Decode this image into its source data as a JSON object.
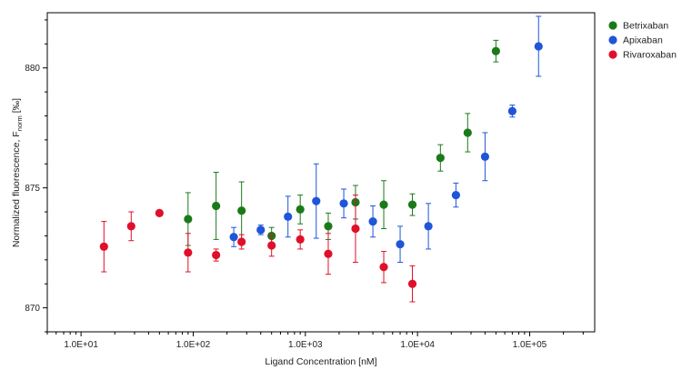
{
  "chart_data": {
    "type": "scatter",
    "title": "",
    "xlabel": "Ligand Concentration [nM]",
    "ylabel": {
      "prefix": "Normalized fluorescence, F",
      "subscript": "norm",
      "suffix": " [‰]"
    },
    "x_scale": "log",
    "xlim": [
      5,
      380000
    ],
    "ylim": [
      869,
      882.3
    ],
    "x_ticks": [
      10,
      100,
      1000,
      10000,
      100000
    ],
    "x_tick_labels": [
      "1.0E+01",
      "1.0E+02",
      "1.0E+03",
      "1.0E+04",
      "1.0E+05"
    ],
    "y_ticks": [
      870,
      875,
      880
    ],
    "y_tick_labels": [
      "870",
      "875",
      "880"
    ],
    "grid": false,
    "legend": "top-right outside plot",
    "series": [
      {
        "name": "Betrixaban",
        "color": "#1a7a1a",
        "points": [
          {
            "x": 90,
            "y": 873.7,
            "err": 1.1
          },
          {
            "x": 160,
            "y": 874.25,
            "err": 1.4
          },
          {
            "x": 270,
            "y": 874.05,
            "err": 1.2
          },
          {
            "x": 500,
            "y": 873.0,
            "err": 0.35
          },
          {
            "x": 900,
            "y": 874.1,
            "err": 0.6
          },
          {
            "x": 1600,
            "y": 873.4,
            "err": 0.55
          },
          {
            "x": 2800,
            "y": 874.4,
            "err": 0.7
          },
          {
            "x": 5000,
            "y": 874.3,
            "err": 1.0
          },
          {
            "x": 9000,
            "y": 874.3,
            "err": 0.45
          },
          {
            "x": 16000,
            "y": 876.25,
            "err": 0.55
          },
          {
            "x": 28000,
            "y": 877.3,
            "err": 0.8
          },
          {
            "x": 50000,
            "y": 880.7,
            "err": 0.45
          }
        ]
      },
      {
        "name": "Apixaban",
        "color": "#1f55d9",
        "points": [
          {
            "x": 230,
            "y": 872.95,
            "err": 0.4
          },
          {
            "x": 400,
            "y": 873.25,
            "err": 0.2
          },
          {
            "x": 700,
            "y": 873.8,
            "err": 0.85
          },
          {
            "x": 1250,
            "y": 874.45,
            "err": 1.55
          },
          {
            "x": 2200,
            "y": 874.35,
            "err": 0.6
          },
          {
            "x": 4000,
            "y": 873.6,
            "err": 0.65
          },
          {
            "x": 7000,
            "y": 872.65,
            "err": 0.75
          },
          {
            "x": 12500,
            "y": 873.4,
            "err": 0.95
          },
          {
            "x": 22000,
            "y": 874.7,
            "err": 0.5
          },
          {
            "x": 40000,
            "y": 876.3,
            "err": 1.0
          },
          {
            "x": 70000,
            "y": 878.2,
            "err": 0.25
          },
          {
            "x": 120000,
            "y": 880.9,
            "err": 1.25
          }
        ]
      },
      {
        "name": "Rivaroxaban",
        "color": "#e0102a",
        "points": [
          {
            "x": 16,
            "y": 872.55,
            "err": 1.05
          },
          {
            "x": 28,
            "y": 873.4,
            "err": 0.6
          },
          {
            "x": 50,
            "y": 873.95,
            "err": 0
          },
          {
            "x": 90,
            "y": 872.3,
            "err": 0.8
          },
          {
            "x": 160,
            "y": 872.2,
            "err": 0.25
          },
          {
            "x": 270,
            "y": 872.75,
            "err": 0.3
          },
          {
            "x": 500,
            "y": 872.6,
            "err": 0.45
          },
          {
            "x": 900,
            "y": 872.85,
            "err": 0.4
          },
          {
            "x": 1600,
            "y": 872.25,
            "err": 0.85
          },
          {
            "x": 2800,
            "y": 873.3,
            "err": 1.4
          },
          {
            "x": 5000,
            "y": 871.7,
            "err": 0.65
          },
          {
            "x": 9000,
            "y": 871.0,
            "err": 0.75
          }
        ]
      }
    ]
  }
}
